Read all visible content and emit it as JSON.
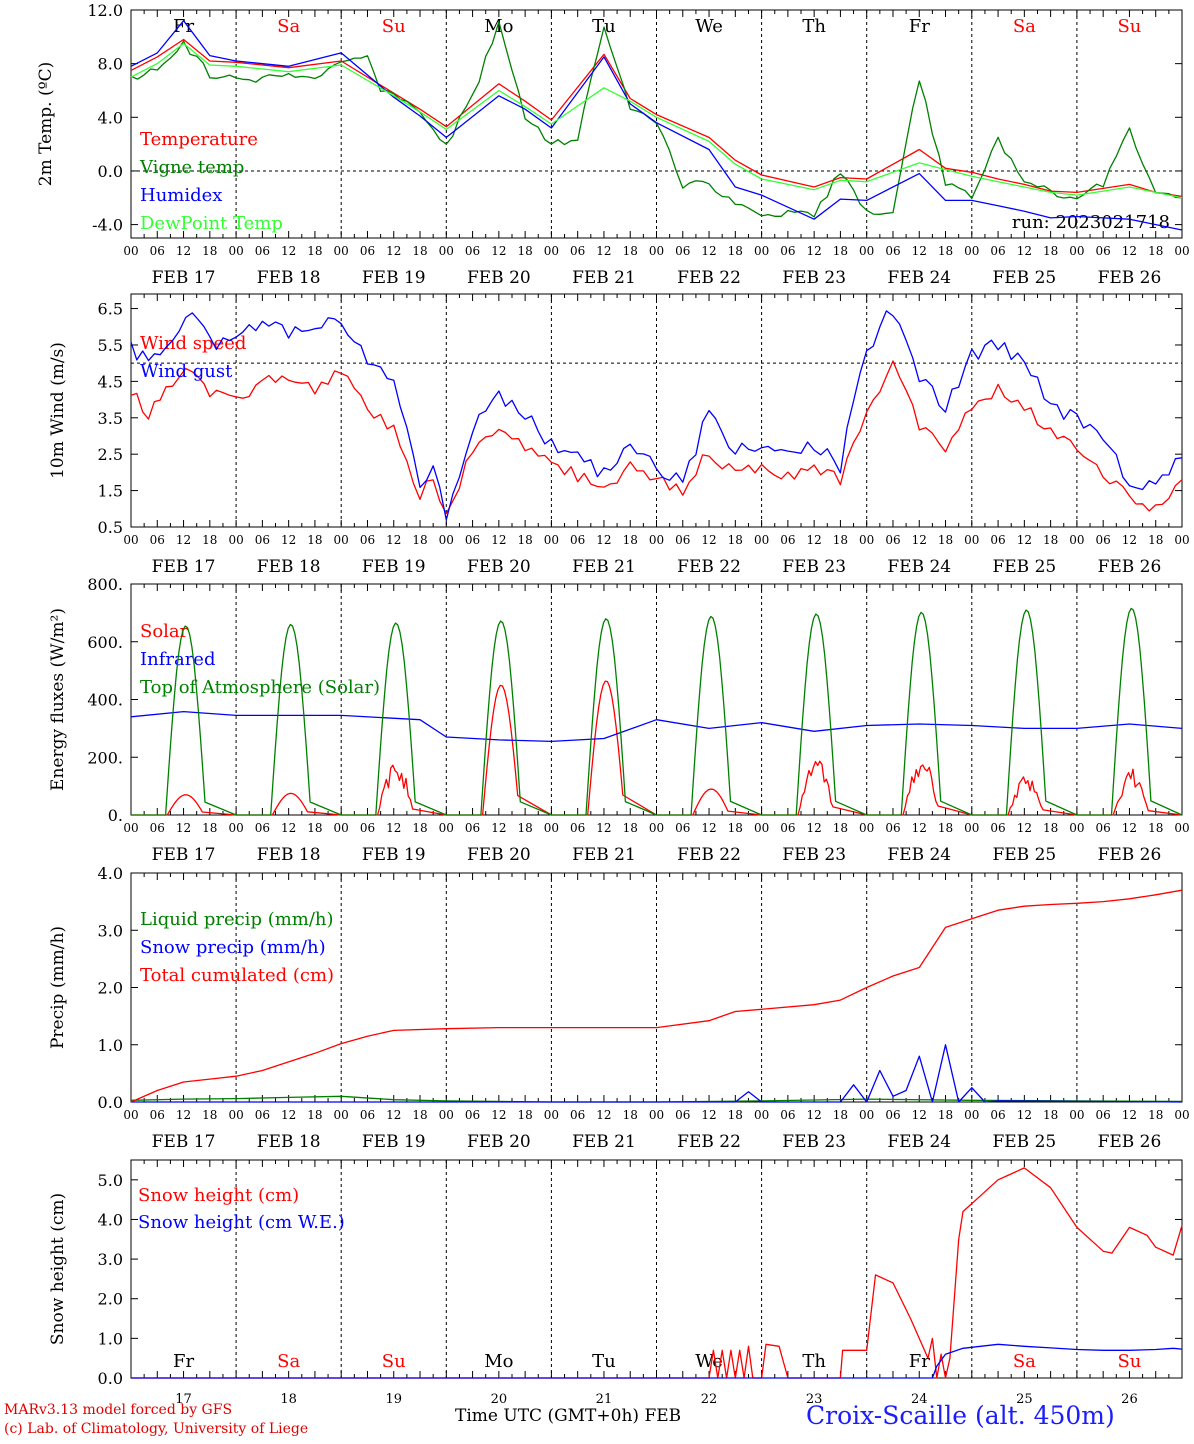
{
  "colors": {
    "red": "#ff0000",
    "blue": "#0000ff",
    "green": "#008000",
    "lime": "#33ff33",
    "black": "#000000"
  },
  "footer": {
    "model": "MARv3.13 model forced by GFS",
    "credit": "(c) Lab. of Climatology, University of Liege",
    "axis_title": "Time UTC (GMT+0h) FEB",
    "station": "Croix-Scaille (alt. 450m)"
  },
  "chart_data": [
    {
      "type": "line",
      "ylabel": "2m Temp. (ºC)",
      "ylim": [
        -5.0,
        12.0
      ],
      "yticks": [
        -4.0,
        0.0,
        4.0,
        8.0,
        12.0
      ],
      "ytick_labels": [
        "-4.0",
        "0.0",
        "4.0",
        "8.0",
        "12.0"
      ],
      "reference_line": 0.0,
      "annotation": "run: 2023021718",
      "day_names": [
        "Fr",
        "Sa",
        "Su",
        "Mo",
        "Tu",
        "We",
        "Th",
        "Fr",
        "Sa",
        "Su"
      ],
      "x_unit": "hours since FEB 17 00 UTC",
      "series": [
        {
          "name": "Temperature",
          "color": "#ff0000",
          "x": [
            0,
            6,
            12,
            18,
            24,
            36,
            48,
            60,
            66,
            72,
            84,
            90,
            96,
            108,
            114,
            120,
            132,
            138,
            144,
            156,
            162,
            168,
            180,
            186,
            192,
            198,
            204,
            210,
            216,
            222,
            228,
            234,
            240
          ],
          "y": [
            7.5,
            8.5,
            9.8,
            8.2,
            8.1,
            7.7,
            8.2,
            5.8,
            4.6,
            3.3,
            6.5,
            5.2,
            3.8,
            8.7,
            5.4,
            4.2,
            2.5,
            0.8,
            -0.3,
            -1.2,
            -0.5,
            -0.6,
            1.6,
            0.2,
            -0.1,
            -0.6,
            -1.0,
            -1.5,
            -1.6,
            -1.3,
            -1.0,
            -1.6,
            -1.9
          ]
        },
        {
          "name": "Vigne temp",
          "color": "#008000",
          "x": [
            0,
            6,
            12,
            18,
            24,
            30,
            36,
            42,
            48,
            54,
            57,
            60,
            66,
            72,
            78,
            84,
            90,
            96,
            102,
            108,
            114,
            120,
            126,
            132,
            138,
            144,
            150,
            156,
            162,
            168,
            174,
            180,
            186,
            192,
            198,
            204,
            210,
            216,
            222,
            228,
            234,
            240
          ],
          "y": [
            7.0,
            7.5,
            9.5,
            7.2,
            7.1,
            6.8,
            7.3,
            7.0,
            8.0,
            8.6,
            6.2,
            5.7,
            4.2,
            2.0,
            5.5,
            11.0,
            4.0,
            2.0,
            2.3,
            11.0,
            4.5,
            3.5,
            -1.0,
            -1.0,
            -2.5,
            -3.5,
            -3.0,
            -3.4,
            0.0,
            -3.0,
            -3.0,
            7.0,
            -1.0,
            -2.0,
            2.5,
            -1.0,
            -1.5,
            -2.0,
            -1.0,
            3.0,
            -1.5,
            -2.0
          ]
        },
        {
          "name": "Humidex",
          "color": "#0000ff",
          "x": [
            0,
            6,
            12,
            18,
            24,
            36,
            48,
            60,
            66,
            72,
            84,
            90,
            96,
            108,
            114,
            120,
            132,
            138,
            144,
            156,
            162,
            168,
            180,
            186,
            192,
            198,
            204,
            210,
            216,
            222,
            228,
            234,
            240
          ],
          "y": [
            7.8,
            8.8,
            11.2,
            8.6,
            8.2,
            7.8,
            8.8,
            5.5,
            4.1,
            2.5,
            5.6,
            4.6,
            3.2,
            8.5,
            5.0,
            3.6,
            1.6,
            -1.2,
            -1.8,
            -3.6,
            -2.1,
            -2.2,
            -0.2,
            -2.2,
            -2.2,
            -2.6,
            -3.0,
            -3.5,
            -3.4,
            -3.5,
            -3.6,
            -4.0,
            -4.4
          ]
        },
        {
          "name": "DewPoint Temp",
          "color": "#33ff33",
          "x": [
            0,
            6,
            12,
            18,
            24,
            36,
            48,
            60,
            66,
            72,
            84,
            90,
            96,
            108,
            114,
            120,
            132,
            138,
            144,
            156,
            162,
            168,
            180,
            186,
            192,
            198,
            204,
            210,
            216,
            222,
            228,
            234,
            240
          ],
          "y": [
            7.0,
            8.0,
            9.5,
            7.9,
            7.8,
            7.4,
            7.9,
            5.6,
            4.4,
            3.1,
            6.0,
            4.8,
            3.5,
            6.2,
            5.2,
            4.0,
            2.2,
            0.5,
            -0.6,
            -1.4,
            -0.7,
            -0.8,
            0.6,
            0.1,
            -0.4,
            -0.8,
            -1.2,
            -1.6,
            -1.8,
            -1.5,
            -1.2,
            -1.6,
            -2.0
          ]
        }
      ]
    },
    {
      "type": "line",
      "ylabel": "10m Wind (m/s)",
      "ylim": [
        0.5,
        6.9
      ],
      "yticks": [
        0.5,
        1.5,
        2.5,
        3.5,
        4.5,
        5.5,
        6.5
      ],
      "ytick_labels": [
        "0.5",
        "1.5",
        "2.5",
        "3.5",
        "4.5",
        "5.5",
        "6.5"
      ],
      "reference_line": 5.0,
      "x_unit": "hours since FEB 17 00 UTC",
      "series": [
        {
          "name": "Wind speed",
          "color": "#ff0000",
          "x": [
            0,
            4,
            8,
            14,
            18,
            24,
            30,
            36,
            42,
            48,
            54,
            60,
            66,
            69,
            72,
            78,
            84,
            90,
            96,
            102,
            108,
            114,
            120,
            126,
            132,
            138,
            144,
            150,
            156,
            162,
            168,
            174,
            180,
            186,
            192,
            198,
            204,
            210,
            216,
            222,
            228,
            234,
            240
          ],
          "y": [
            4.2,
            3.6,
            4.2,
            4.9,
            4.2,
            3.9,
            4.5,
            4.7,
            4.3,
            4.8,
            3.7,
            3.2,
            1.4,
            1.8,
            0.8,
            2.6,
            3.2,
            2.7,
            2.3,
            1.9,
            1.5,
            2.2,
            1.8,
            1.5,
            2.6,
            1.9,
            2.2,
            1.9,
            2.2,
            1.8,
            3.6,
            4.9,
            3.3,
            2.7,
            3.8,
            4.3,
            3.8,
            3.1,
            2.6,
            2.0,
            1.3,
            1.0,
            1.8
          ]
        },
        {
          "name": "Wind gust",
          "color": "#0000ff",
          "x": [
            0,
            4,
            8,
            14,
            18,
            24,
            30,
            36,
            42,
            48,
            54,
            60,
            66,
            69,
            72,
            78,
            84,
            90,
            96,
            102,
            108,
            114,
            120,
            126,
            132,
            138,
            144,
            150,
            156,
            162,
            168,
            174,
            180,
            186,
            192,
            198,
            204,
            210,
            216,
            222,
            228,
            234,
            240
          ],
          "y": [
            5.4,
            5.0,
            5.6,
            6.4,
            5.6,
            5.5,
            6.2,
            5.9,
            5.8,
            6.3,
            5.0,
            4.4,
            1.7,
            2.2,
            0.9,
            3.2,
            4.2,
            3.5,
            2.8,
            2.4,
            2.0,
            2.9,
            2.2,
            1.7,
            3.7,
            2.6,
            2.7,
            2.4,
            2.8,
            2.2,
            5.4,
            6.5,
            4.5,
            3.8,
            5.2,
            5.5,
            5.0,
            3.9,
            3.4,
            2.8,
            1.8,
            1.5,
            2.4
          ]
        }
      ]
    },
    {
      "type": "line",
      "ylabel": "Energy fluxes (W/m²)",
      "ylim": [
        0,
        800
      ],
      "yticks": [
        0,
        200,
        400,
        600,
        800
      ],
      "ytick_labels": [
        "0.",
        "200.",
        "400.",
        "600.",
        "800."
      ],
      "x_unit": "hours since FEB 17 00 UTC",
      "series": [
        {
          "name": "Solar",
          "color": "#ff0000",
          "daily_peak_hour": 12.5,
          "daily_peak": [
            70,
            75,
            195,
            450,
            465,
            90,
            210,
            230,
            140,
            160
          ]
        },
        {
          "name": "Infrared",
          "color": "#0000ff",
          "x": [
            0,
            12,
            24,
            48,
            66,
            72,
            84,
            96,
            108,
            120,
            132,
            144,
            156,
            168,
            180,
            192,
            204,
            216,
            228,
            240
          ],
          "y": [
            340,
            358,
            345,
            345,
            330,
            270,
            260,
            255,
            265,
            330,
            300,
            320,
            290,
            310,
            315,
            310,
            300,
            300,
            315,
            300
          ]
        },
        {
          "name": "Top of Atmosphere (Solar)",
          "color": "#008000",
          "daily_peak_hour": 12.5,
          "daily_peak": [
            655,
            660,
            665,
            672,
            680,
            688,
            696,
            702,
            710,
            716
          ]
        }
      ]
    },
    {
      "type": "line",
      "ylabel": "Precip (mm/h)",
      "ylim": [
        0,
        4.0
      ],
      "yticks": [
        0.0,
        1.0,
        2.0,
        3.0,
        4.0
      ],
      "ytick_labels": [
        "0.0",
        "1.0",
        "2.0",
        "3.0",
        "4.0"
      ],
      "x_unit": "hours since FEB 17 00 UTC",
      "series": [
        {
          "name": "Liquid precip (mm/h)",
          "color": "#008000",
          "x": [
            0,
            12,
            24,
            36,
            48,
            60,
            72,
            96,
            120,
            144,
            168,
            192,
            216,
            240
          ],
          "y": [
            0.03,
            0.05,
            0.06,
            0.08,
            0.1,
            0.04,
            0.02,
            0.0,
            0.0,
            0.02,
            0.05,
            0.03,
            0.02,
            0.01
          ]
        },
        {
          "name": "Snow precip (mm/h)",
          "color": "#0000ff",
          "x": [
            0,
            120,
            138,
            141,
            144,
            162,
            165,
            168,
            171,
            174,
            177,
            180,
            183,
            186,
            189,
            192,
            195,
            198,
            240
          ],
          "y": [
            0,
            0,
            0.0,
            0.18,
            0.0,
            0.0,
            0.3,
            0.0,
            0.55,
            0.1,
            0.2,
            0.8,
            0.0,
            1.0,
            0.0,
            0.25,
            0.0,
            0.02,
            0.0
          ]
        },
        {
          "name": "Total cumulated (cm)",
          "color": "#ff0000",
          "x": [
            0,
            6,
            12,
            18,
            24,
            30,
            36,
            42,
            48,
            54,
            60,
            72,
            84,
            96,
            108,
            120,
            132,
            138,
            144,
            156,
            162,
            168,
            174,
            180,
            186,
            192,
            198,
            204,
            210,
            216,
            222,
            228,
            234,
            240
          ],
          "y": [
            0.0,
            0.2,
            0.35,
            0.4,
            0.45,
            0.55,
            0.7,
            0.85,
            1.02,
            1.15,
            1.25,
            1.28,
            1.3,
            1.3,
            1.3,
            1.3,
            1.42,
            1.58,
            1.62,
            1.7,
            1.78,
            2.0,
            2.2,
            2.35,
            3.05,
            3.2,
            3.35,
            3.42,
            3.45,
            3.47,
            3.5,
            3.55,
            3.62,
            3.7
          ]
        }
      ]
    },
    {
      "type": "line",
      "ylabel": "Snow height (cm)",
      "ylim": [
        0,
        5.5
      ],
      "yticks": [
        0.0,
        1.0,
        2.0,
        3.0,
        4.0,
        5.0
      ],
      "ytick_labels": [
        "0.0",
        "1.0",
        "2.0",
        "3.0",
        "4.0",
        "5.0"
      ],
      "x_labels": [
        "17",
        "18",
        "19",
        "20",
        "21",
        "22",
        "23",
        "24",
        "25",
        "26"
      ],
      "x_unit": "hours since FEB 17 00 UTC",
      "series": [
        {
          "name": "Snow height (cm)",
          "color": "#ff0000",
          "x": [
            0,
            132,
            133,
            134,
            135,
            136,
            137,
            138,
            139,
            140,
            141,
            142,
            143,
            144,
            145,
            148,
            150,
            152,
            162,
            162.5,
            166,
            168,
            170,
            174,
            178,
            182,
            183,
            184,
            185,
            186,
            187,
            188,
            189,
            190,
            192,
            194,
            196,
            198,
            200,
            204,
            210,
            216,
            220,
            222,
            224,
            228,
            232,
            234,
            238,
            240
          ],
          "y": [
            0,
            0,
            0.7,
            0.0,
            0.7,
            0.0,
            0.7,
            0.0,
            0.7,
            0.0,
            0.8,
            0.0,
            0.0,
            0.0,
            0.85,
            0.8,
            0.0,
            0.0,
            0.0,
            0.7,
            0.7,
            0.7,
            2.6,
            2.4,
            1.5,
            0.5,
            1.0,
            0.0,
            0.6,
            0.0,
            0.5,
            2.0,
            3.5,
            4.2,
            4.4,
            4.6,
            4.8,
            5.0,
            5.1,
            5.3,
            4.8,
            3.8,
            3.4,
            3.2,
            3.15,
            3.8,
            3.6,
            3.3,
            3.1,
            3.85
          ]
        },
        {
          "name": "Snow height (cm W.E.)",
          "color": "#0000ff",
          "x": [
            0,
            183,
            184,
            186,
            190,
            198,
            204,
            210,
            216,
            222,
            228,
            234,
            238,
            240
          ],
          "y": [
            0,
            0,
            0.3,
            0.6,
            0.75,
            0.85,
            0.8,
            0.76,
            0.72,
            0.7,
            0.7,
            0.72,
            0.75,
            0.73
          ]
        }
      ]
    }
  ]
}
